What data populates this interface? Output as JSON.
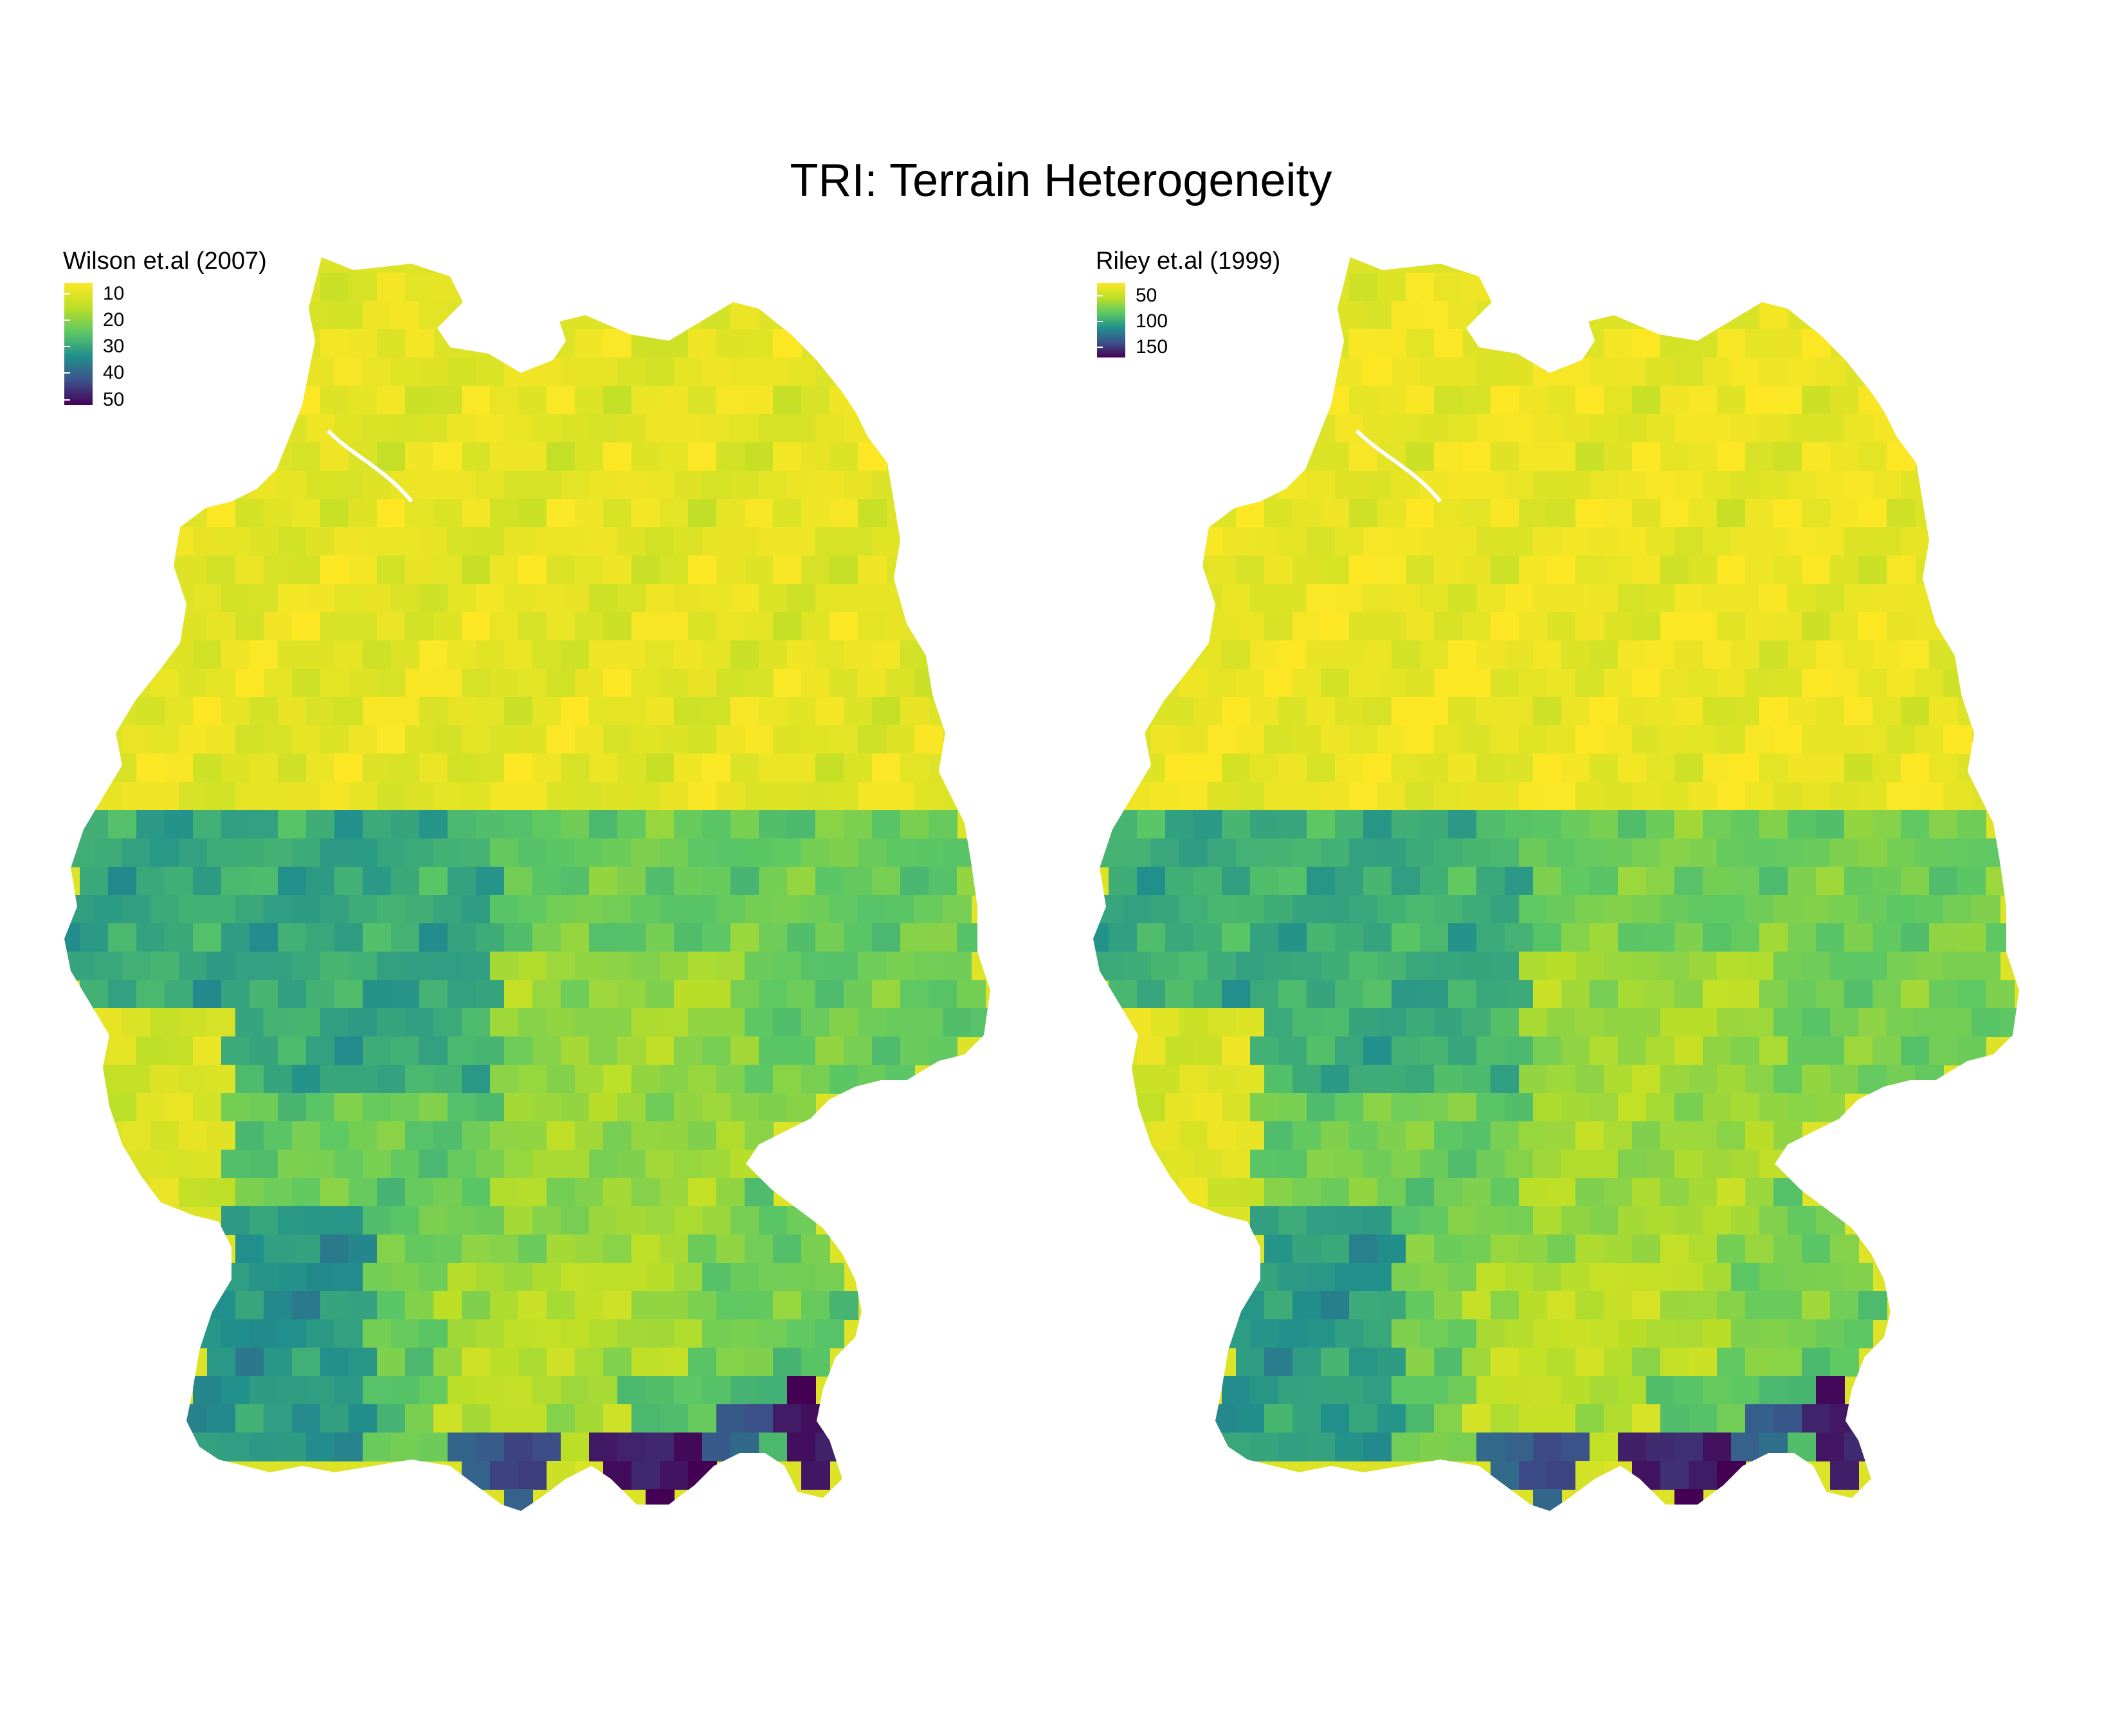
{
  "title": "TRI: Terrain Heterogeneity",
  "palette": [
    "#440154",
    "#3b528b",
    "#21908c",
    "#5dc863",
    "#bddf26",
    "#fde725"
  ],
  "panels": [
    {
      "legend": {
        "title": "Wilson et.al (2007)",
        "min": 6,
        "max": 52,
        "ticks": [
          10,
          20,
          30,
          40,
          50
        ],
        "tick_labels": [
          "10",
          "20",
          "30",
          "40",
          "50"
        ]
      }
    },
    {
      "legend": {
        "title": "Riley et.al (1999)",
        "min": 25,
        "max": 170,
        "ticks": [
          50,
          100,
          150
        ],
        "tick_labels": [
          "50",
          "100",
          "150"
        ]
      }
    }
  ]
}
